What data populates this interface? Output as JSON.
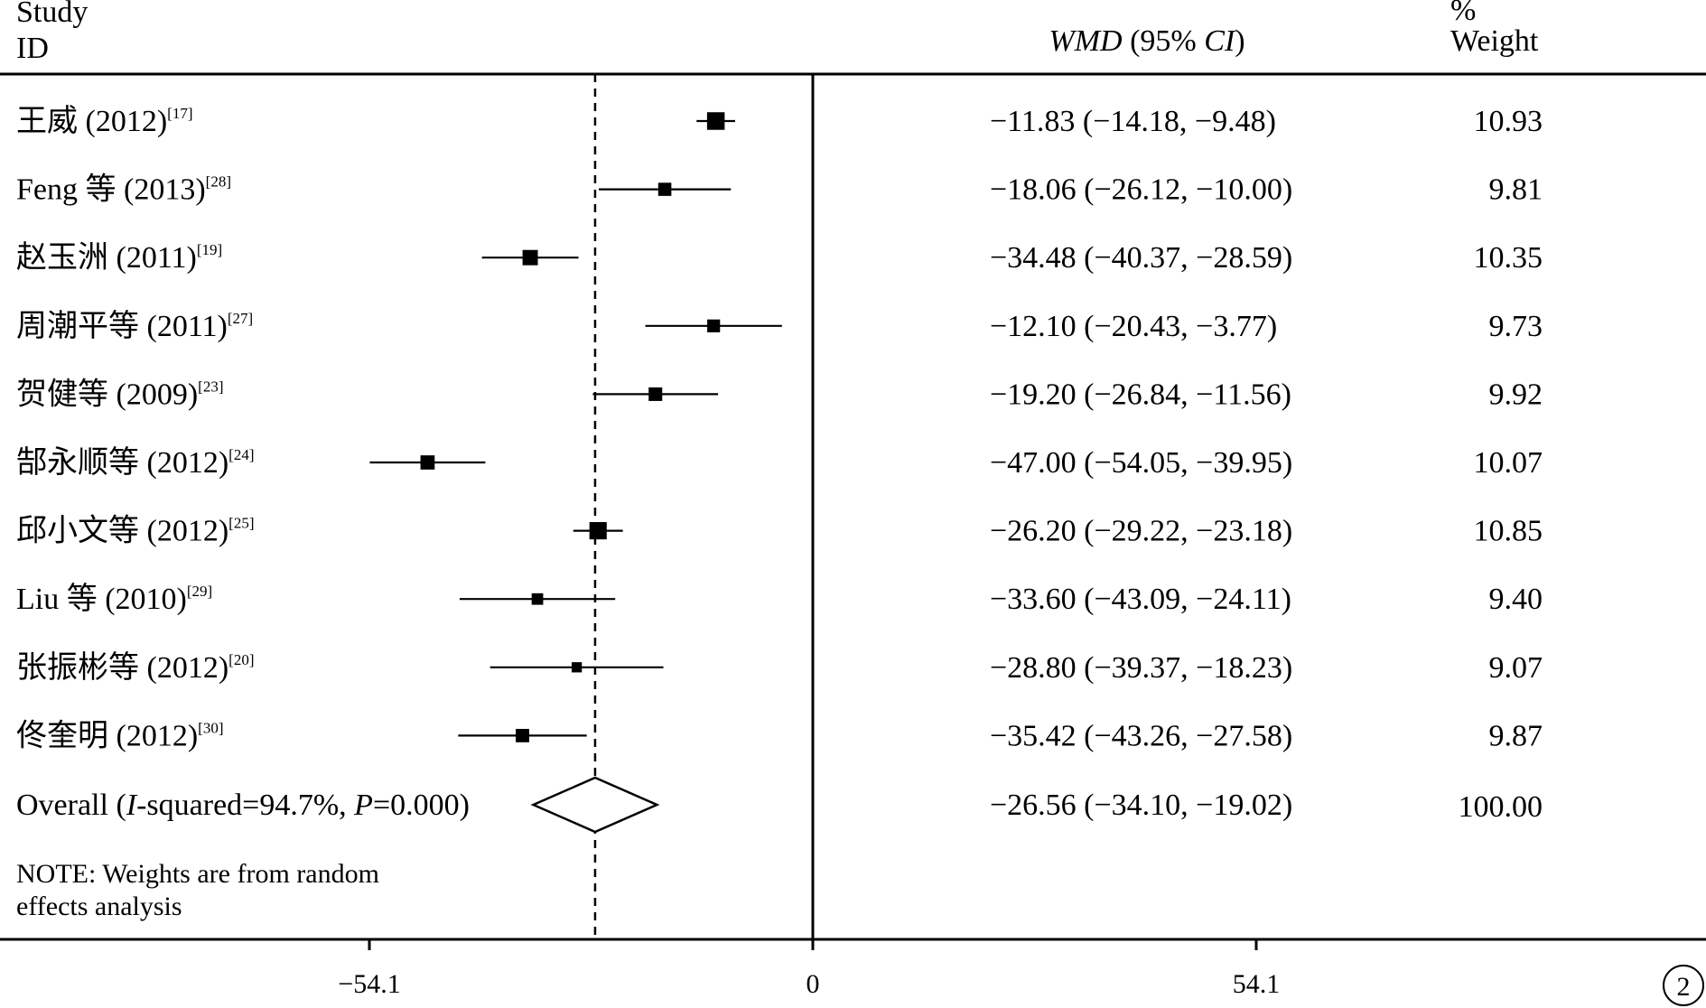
{
  "chart_data": {
    "type": "forest",
    "header": {
      "study_line1": "Study",
      "study_line2": "ID",
      "effect_label_italic1": "WMD",
      "effect_label_middle": " (95% ",
      "effect_label_italic2": "CI",
      "effect_label_end": ")",
      "weight_line1": "%",
      "weight_line2": "Weight"
    },
    "studies": [
      {
        "label": "王威 (2012)",
        "ref": "[17]",
        "wmd": -11.83,
        "lo": -14.18,
        "hi": -9.48,
        "ci_text": "−11.83 (−14.18, −9.48)",
        "weight": "10.93"
      },
      {
        "label": "Feng 等 (2013)",
        "ref": "[28]",
        "wmd": -18.06,
        "lo": -26.12,
        "hi": -10.0,
        "ci_text": "−18.06 (−26.12, −10.00)",
        "weight": "9.81"
      },
      {
        "label": "赵玉洲 (2011)",
        "ref": "[19]",
        "wmd": -34.48,
        "lo": -40.37,
        "hi": -28.59,
        "ci_text": "−34.48 (−40.37, −28.59)",
        "weight": "10.35"
      },
      {
        "label": "周潮平等 (2011)",
        "ref": "[27]",
        "wmd": -12.1,
        "lo": -20.43,
        "hi": -3.77,
        "ci_text": "−12.10 (−20.43, −3.77)",
        "weight": "9.73"
      },
      {
        "label": "贺健等  (2009)",
        "ref": "[23]",
        "wmd": -19.2,
        "lo": -26.84,
        "hi": -11.56,
        "ci_text": "−19.20 (−26.84, −11.56)",
        "weight": "9.92"
      },
      {
        "label": "郜永顺等 (2012)",
        "ref": "[24]",
        "wmd": -47.0,
        "lo": -54.05,
        "hi": -39.95,
        "ci_text": "−47.00 (−54.05, −39.95)",
        "weight": "10.07"
      },
      {
        "label": "邱小文等 (2012)",
        "ref": "[25]",
        "wmd": -26.2,
        "lo": -29.22,
        "hi": -23.18,
        "ci_text": "−26.20 (−29.22, −23.18)",
        "weight": "10.85"
      },
      {
        "label": "Liu 等 (2010)",
        "ref": "[29]",
        "wmd": -33.6,
        "lo": -43.09,
        "hi": -24.11,
        "ci_text": "−33.60 (−43.09, −24.11)",
        "weight": "9.40"
      },
      {
        "label": "张振彬等 (2012)",
        "ref": "[20]",
        "wmd": -28.8,
        "lo": -39.37,
        "hi": -18.23,
        "ci_text": "−28.80 (−39.37, −18.23)",
        "weight": "9.07"
      },
      {
        "label": "佟奎明  (2012)",
        "ref": "[30]",
        "wmd": -35.42,
        "lo": -43.26,
        "hi": -27.58,
        "ci_text": "−35.42 (−43.26, −27.58)",
        "weight": "9.87"
      }
    ],
    "overall": {
      "label_start": "Overall (",
      "label_i": "I",
      "label_mid": "-squared=94.7%, ",
      "label_p": "P",
      "label_end": "=0.000)",
      "wmd": -26.56,
      "lo": -34.1,
      "hi": -19.02,
      "ci_text": "−26.56 (−34.10, −19.02)",
      "weight": "100.00"
    },
    "note_line1": "NOTE: Weights are from random",
    "note_line2": "effects analysis",
    "xticks": [
      -54.1,
      0,
      54.1
    ],
    "xtick_labels": [
      "−54.1",
      "0",
      "54.1"
    ],
    "xlim": [
      -100,
      110
    ],
    "null_line": 0,
    "panel_label": "2"
  }
}
